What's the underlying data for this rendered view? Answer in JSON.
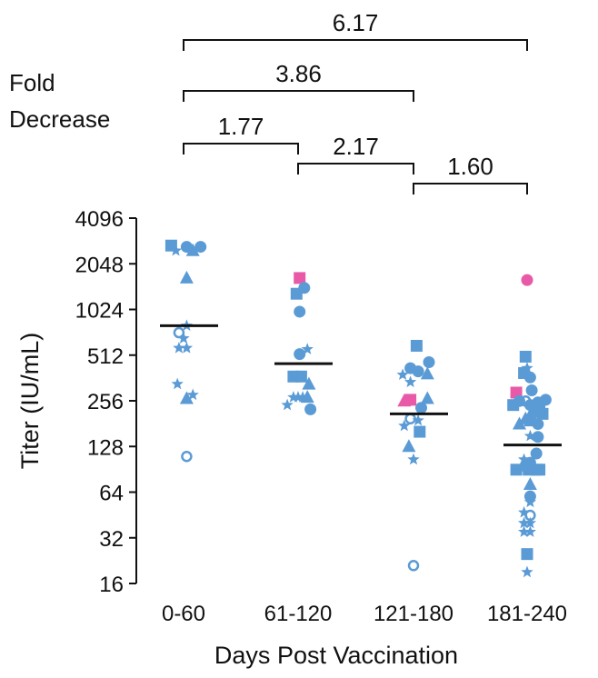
{
  "colors": {
    "blue": "#5B9BD5",
    "pink": "#E85AA8",
    "text": "#111111"
  },
  "chart_data": {
    "type": "scatter",
    "title": "",
    "xlabel": "Days Post Vaccination",
    "ylabel": "Titer (IU/mL)",
    "y_scale": "log2",
    "ylim": [
      16,
      4096
    ],
    "yticks": [
      "4096",
      "2048",
      "1024",
      "512",
      "256",
      "128",
      "64",
      "32",
      "16"
    ],
    "categories": [
      "0-60",
      "61-120",
      "121-180",
      "181-240"
    ],
    "fold_decrease_label": [
      "Fold",
      "Decrease"
    ],
    "comparisons": [
      {
        "from": "0-60",
        "to": "181-240",
        "label": "6.17"
      },
      {
        "from": "0-60",
        "to": "121-180",
        "label": "3.86"
      },
      {
        "from": "0-60",
        "to": "61-120",
        "label": "1.77"
      },
      {
        "from": "61-120",
        "to": "121-180",
        "label": "2.17"
      },
      {
        "from": "121-180",
        "to": "181-240",
        "label": "1.60"
      }
    ],
    "medians": [
      {
        "category": "0-60",
        "value": 800
      },
      {
        "category": "61-120",
        "value": 450
      },
      {
        "category": "121-180",
        "value": 210
      },
      {
        "category": "181-240",
        "value": 131
      }
    ],
    "points": [
      {
        "category": "0-60",
        "offset": -0.4,
        "value": 2700,
        "marker": "square",
        "color": "blue"
      },
      {
        "category": "0-60",
        "offset": -0.25,
        "value": 2500,
        "marker": "star",
        "color": "blue"
      },
      {
        "category": "0-60",
        "offset": 0.1,
        "value": 2650,
        "marker": "circle",
        "color": "blue"
      },
      {
        "category": "0-60",
        "offset": 0.3,
        "value": 2500,
        "marker": "triangle",
        "color": "blue"
      },
      {
        "category": "0-60",
        "offset": 0.55,
        "value": 2650,
        "marker": "circle",
        "color": "blue"
      },
      {
        "category": "0-60",
        "offset": 0.1,
        "value": 1650,
        "marker": "triangle",
        "color": "blue"
      },
      {
        "category": "0-60",
        "offset": 0.1,
        "value": 800,
        "marker": "star",
        "color": "blue"
      },
      {
        "category": "0-60",
        "offset": -0.15,
        "value": 720,
        "marker": "open-circle",
        "color": "blue"
      },
      {
        "category": "0-60",
        "offset": 0.0,
        "value": 660,
        "marker": "star",
        "color": "blue"
      },
      {
        "category": "0-60",
        "offset": -0.15,
        "value": 570,
        "marker": "star",
        "color": "blue"
      },
      {
        "category": "0-60",
        "offset": 0.1,
        "value": 570,
        "marker": "star",
        "color": "blue"
      },
      {
        "category": "0-60",
        "offset": -0.2,
        "value": 330,
        "marker": "star",
        "color": "blue"
      },
      {
        "category": "0-60",
        "offset": 0.1,
        "value": 265,
        "marker": "triangle",
        "color": "blue"
      },
      {
        "category": "0-60",
        "offset": 0.3,
        "value": 280,
        "marker": "star",
        "color": "blue"
      },
      {
        "category": "0-60",
        "offset": 0.1,
        "value": 110,
        "marker": "open-circle",
        "color": "blue"
      },
      {
        "category": "61-120",
        "offset": 0.05,
        "value": 1650,
        "marker": "square",
        "color": "pink"
      },
      {
        "category": "61-120",
        "offset": -0.05,
        "value": 1300,
        "marker": "square",
        "color": "blue"
      },
      {
        "category": "61-120",
        "offset": 0.2,
        "value": 1420,
        "marker": "circle",
        "color": "blue"
      },
      {
        "category": "61-120",
        "offset": 0.05,
        "value": 990,
        "marker": "circle",
        "color": "blue"
      },
      {
        "category": "61-120",
        "offset": 0.05,
        "value": 520,
        "marker": "circle",
        "color": "blue"
      },
      {
        "category": "61-120",
        "offset": 0.3,
        "value": 560,
        "marker": "star",
        "color": "blue"
      },
      {
        "category": "61-120",
        "offset": -0.15,
        "value": 370,
        "marker": "square",
        "color": "blue"
      },
      {
        "category": "61-120",
        "offset": 0.1,
        "value": 370,
        "marker": "square",
        "color": "blue"
      },
      {
        "category": "61-120",
        "offset": 0.35,
        "value": 330,
        "marker": "triangle",
        "color": "blue"
      },
      {
        "category": "61-120",
        "offset": -0.35,
        "value": 240,
        "marker": "star",
        "color": "blue"
      },
      {
        "category": "61-120",
        "offset": -0.15,
        "value": 270,
        "marker": "star",
        "color": "blue"
      },
      {
        "category": "61-120",
        "offset": 0.0,
        "value": 270,
        "marker": "star",
        "color": "blue"
      },
      {
        "category": "61-120",
        "offset": 0.15,
        "value": 270,
        "marker": "star",
        "color": "blue"
      },
      {
        "category": "61-120",
        "offset": 0.3,
        "value": 270,
        "marker": "triangle",
        "color": "blue"
      },
      {
        "category": "61-120",
        "offset": 0.4,
        "value": 225,
        "marker": "circle",
        "color": "blue"
      },
      {
        "category": "121-180",
        "offset": 0.1,
        "value": 590,
        "marker": "square",
        "color": "blue"
      },
      {
        "category": "121-180",
        "offset": 0.5,
        "value": 460,
        "marker": "circle",
        "color": "blue"
      },
      {
        "category": "121-180",
        "offset": -0.1,
        "value": 420,
        "marker": "circle",
        "color": "blue"
      },
      {
        "category": "121-180",
        "offset": 0.15,
        "value": 400,
        "marker": "circle",
        "color": "blue"
      },
      {
        "category": "121-180",
        "offset": 0.45,
        "value": 385,
        "marker": "triangle",
        "color": "blue"
      },
      {
        "category": "121-180",
        "offset": -0.35,
        "value": 380,
        "marker": "star",
        "color": "blue"
      },
      {
        "category": "121-180",
        "offset": -0.1,
        "value": 340,
        "marker": "star",
        "color": "blue"
      },
      {
        "category": "121-180",
        "offset": -0.3,
        "value": 255,
        "marker": "triangle",
        "color": "pink"
      },
      {
        "category": "121-180",
        "offset": -0.1,
        "value": 260,
        "marker": "square",
        "color": "pink"
      },
      {
        "category": "121-180",
        "offset": 0.45,
        "value": 265,
        "marker": "triangle",
        "color": "blue"
      },
      {
        "category": "121-180",
        "offset": 0.25,
        "value": 230,
        "marker": "circle",
        "color": "blue"
      },
      {
        "category": "121-180",
        "offset": -0.1,
        "value": 195,
        "marker": "open-circle",
        "color": "blue"
      },
      {
        "category": "121-180",
        "offset": 0.15,
        "value": 190,
        "marker": "star",
        "color": "blue"
      },
      {
        "category": "121-180",
        "offset": -0.3,
        "value": 175,
        "marker": "star",
        "color": "blue"
      },
      {
        "category": "121-180",
        "offset": 0.2,
        "value": 160,
        "marker": "square",
        "color": "blue"
      },
      {
        "category": "121-180",
        "offset": -0.15,
        "value": 128,
        "marker": "triangle",
        "color": "blue"
      },
      {
        "category": "121-180",
        "offset": 0.0,
        "value": 105,
        "marker": "star",
        "color": "blue"
      },
      {
        "category": "121-180",
        "offset": 0.0,
        "value": 21,
        "marker": "open-circle",
        "color": "blue"
      },
      {
        "category": "181-240",
        "offset": 0.0,
        "value": 1600,
        "marker": "circle",
        "color": "pink"
      },
      {
        "category": "181-240",
        "offset": -0.05,
        "value": 500,
        "marker": "square",
        "color": "blue"
      },
      {
        "category": "181-240",
        "offset": 0.0,
        "value": 420,
        "marker": "star",
        "color": "blue"
      },
      {
        "category": "181-240",
        "offset": -0.1,
        "value": 390,
        "marker": "square",
        "color": "blue"
      },
      {
        "category": "181-240",
        "offset": 0.1,
        "value": 365,
        "marker": "circle",
        "color": "blue"
      },
      {
        "category": "181-240",
        "offset": -0.35,
        "value": 290,
        "marker": "square",
        "color": "pink"
      },
      {
        "category": "181-240",
        "offset": 0.15,
        "value": 300,
        "marker": "circle",
        "color": "blue"
      },
      {
        "category": "181-240",
        "offset": -0.45,
        "value": 240,
        "marker": "square",
        "color": "blue"
      },
      {
        "category": "181-240",
        "offset": -0.25,
        "value": 255,
        "marker": "circle",
        "color": "blue"
      },
      {
        "category": "181-240",
        "offset": -0.05,
        "value": 255,
        "marker": "open-circle",
        "color": "blue"
      },
      {
        "category": "181-240",
        "offset": 0.1,
        "value": 240,
        "marker": "circle",
        "color": "blue"
      },
      {
        "category": "181-240",
        "offset": 0.35,
        "value": 250,
        "marker": "circle",
        "color": "blue"
      },
      {
        "category": "181-240",
        "offset": 0.6,
        "value": 260,
        "marker": "circle",
        "color": "blue"
      },
      {
        "category": "181-240",
        "offset": 0.15,
        "value": 215,
        "marker": "triangle",
        "color": "blue"
      },
      {
        "category": "181-240",
        "offset": 0.3,
        "value": 230,
        "marker": "star",
        "color": "blue"
      },
      {
        "category": "181-240",
        "offset": 0.4,
        "value": 220,
        "marker": "square",
        "color": "blue"
      },
      {
        "category": "181-240",
        "offset": 0.5,
        "value": 210,
        "marker": "square",
        "color": "blue"
      },
      {
        "category": "181-240",
        "offset": -0.25,
        "value": 180,
        "marker": "triangle",
        "color": "blue"
      },
      {
        "category": "181-240",
        "offset": -0.05,
        "value": 195,
        "marker": "triangle",
        "color": "blue"
      },
      {
        "category": "181-240",
        "offset": 0.1,
        "value": 190,
        "marker": "square",
        "color": "blue"
      },
      {
        "category": "181-240",
        "offset": 0.35,
        "value": 180,
        "marker": "circle",
        "color": "blue"
      },
      {
        "category": "181-240",
        "offset": 0.1,
        "value": 150,
        "marker": "star",
        "color": "blue"
      },
      {
        "category": "181-240",
        "offset": 0.35,
        "value": 148,
        "marker": "circle",
        "color": "blue"
      },
      {
        "category": "181-240",
        "offset": 0.3,
        "value": 115,
        "marker": "circle",
        "color": "blue"
      },
      {
        "category": "181-240",
        "offset": -0.1,
        "value": 105,
        "marker": "star",
        "color": "blue"
      },
      {
        "category": "181-240",
        "offset": 0.1,
        "value": 100,
        "marker": "circle",
        "color": "blue"
      },
      {
        "category": "181-240",
        "offset": -0.35,
        "value": 90,
        "marker": "square",
        "color": "blue"
      },
      {
        "category": "181-240",
        "offset": -0.15,
        "value": 95,
        "marker": "triangle",
        "color": "blue"
      },
      {
        "category": "181-240",
        "offset": 0.05,
        "value": 90,
        "marker": "square",
        "color": "blue"
      },
      {
        "category": "181-240",
        "offset": 0.3,
        "value": 90,
        "marker": "square",
        "color": "blue"
      },
      {
        "category": "181-240",
        "offset": 0.4,
        "value": 90,
        "marker": "square",
        "color": "blue"
      },
      {
        "category": "181-240",
        "offset": 0.1,
        "value": 72,
        "marker": "triangle",
        "color": "blue"
      },
      {
        "category": "181-240",
        "offset": 0.1,
        "value": 60,
        "marker": "circle",
        "color": "blue"
      },
      {
        "category": "181-240",
        "offset": 0.1,
        "value": 55,
        "marker": "star",
        "color": "blue"
      },
      {
        "category": "181-240",
        "offset": -0.1,
        "value": 47,
        "marker": "star",
        "color": "blue"
      },
      {
        "category": "181-240",
        "offset": 0.1,
        "value": 45,
        "marker": "open-circle",
        "color": "blue"
      },
      {
        "category": "181-240",
        "offset": -0.1,
        "value": 40,
        "marker": "star",
        "color": "blue"
      },
      {
        "category": "181-240",
        "offset": 0.1,
        "value": 40,
        "marker": "star",
        "color": "blue"
      },
      {
        "category": "181-240",
        "offset": -0.1,
        "value": 35,
        "marker": "star",
        "color": "blue"
      },
      {
        "category": "181-240",
        "offset": 0.1,
        "value": 35,
        "marker": "star",
        "color": "blue"
      },
      {
        "category": "181-240",
        "offset": 0.0,
        "value": 25,
        "marker": "square",
        "color": "blue"
      },
      {
        "category": "181-240",
        "offset": 0.0,
        "value": 19,
        "marker": "star",
        "color": "blue"
      }
    ]
  }
}
